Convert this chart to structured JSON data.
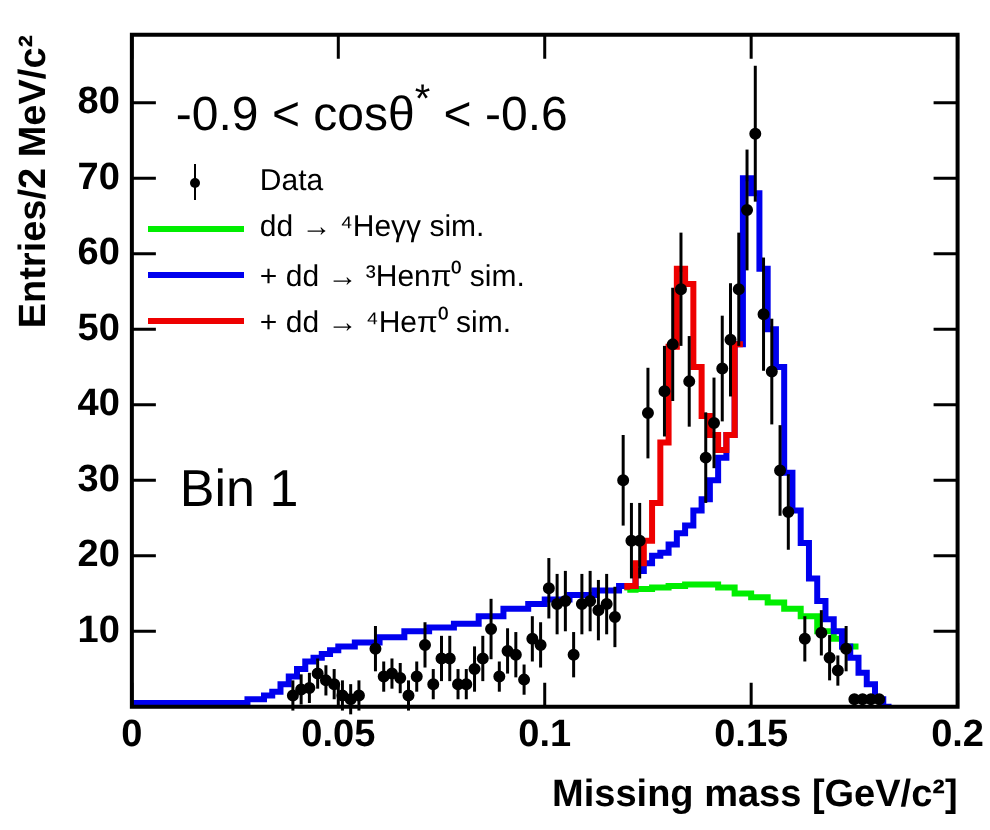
{
  "chart_data": {
    "type": "step",
    "xlabel": "Missing mass [GeV/c²]",
    "ylabel": "Entries/2 MeV/c²",
    "xlim": [
      0,
      0.2
    ],
    "ylim": [
      0,
      89
    ],
    "xticks": [
      0,
      0.05,
      0.1,
      0.15,
      0.2
    ],
    "yticks": [
      10,
      20,
      30,
      40,
      50,
      60,
      70,
      80
    ],
    "grid": false,
    "legend": "top left",
    "annotations": [
      "-0.9 < cosθ$^{*}$ < -0.6",
      "Bin 1"
    ],
    "series": [
      {
        "name": "Data",
        "type": "scatter",
        "marker": "circle",
        "color": "#000000",
        "x": [
          0.039,
          0.041,
          0.043,
          0.045,
          0.047,
          0.049,
          0.051,
          0.053,
          0.055,
          0.059,
          0.061,
          0.063,
          0.065,
          0.067,
          0.069,
          0.071,
          0.073,
          0.075,
          0.077,
          0.079,
          0.081,
          0.083,
          0.085,
          0.087,
          0.089,
          0.091,
          0.093,
          0.095,
          0.097,
          0.099,
          0.101,
          0.103,
          0.105,
          0.107,
          0.109,
          0.111,
          0.113,
          0.115,
          0.117,
          0.119,
          0.121,
          0.123,
          0.125,
          0.129,
          0.131,
          0.133,
          0.135,
          0.139,
          0.141,
          0.143,
          0.145,
          0.147,
          0.149,
          0.151,
          0.153,
          0.155,
          0.157,
          0.159,
          0.163,
          0.167,
          0.169,
          0.171,
          0.173,
          0.175,
          0.177,
          0.179,
          0.181
        ],
        "values": [
          1.5,
          2.3,
          2.5,
          4.4,
          3.5,
          3,
          1.5,
          1,
          1.5,
          7.7,
          4,
          4.4,
          3.8,
          1.5,
          4,
          8.2,
          3,
          6.4,
          6.4,
          3,
          3,
          5,
          6.4,
          10.3,
          4,
          7.4,
          6.9,
          3.6,
          9,
          8.2,
          15.7,
          13.6,
          14,
          6.9,
          13.6,
          14,
          12.8,
          13.6,
          11.9,
          30,
          22,
          22,
          38.9,
          41.8,
          48,
          55.3,
          43.1,
          33,
          37.6,
          44.8,
          48.6,
          55.3,
          65.8,
          75.9,
          52,
          44.4,
          31.3,
          25.8,
          9,
          9.8,
          6.5,
          4.8,
          7.7,
          1,
          1,
          1,
          1
        ],
        "errors": [
          2,
          2,
          2,
          2,
          2,
          2,
          2,
          2,
          2,
          3,
          2,
          2,
          2,
          2,
          2,
          3,
          2,
          3,
          3,
          2,
          2,
          3,
          3,
          4,
          2,
          3,
          3,
          2,
          3,
          3,
          4,
          4,
          4,
          3,
          4,
          4,
          4,
          4,
          4,
          6,
          5,
          5,
          6,
          6,
          7.5,
          7.5,
          6,
          6,
          6,
          7,
          7.5,
          7.5,
          8,
          9,
          7.5,
          7,
          6,
          5,
          3,
          3,
          3,
          2,
          3,
          null,
          null,
          null,
          null
        ]
      },
      {
        "name": "dd → ⁴Heγγ sim.",
        "color": "#00ee00",
        "x": [
          0.12,
          0.122,
          0.126,
          0.13,
          0.134,
          0.138,
          0.142,
          0.146,
          0.15,
          0.154,
          0.158,
          0.162,
          0.166,
          0.17,
          0.172,
          0.174,
          0.176
        ],
        "values": [
          15.4,
          15.5,
          15.6,
          15.8,
          16,
          16.2,
          16.2,
          15.8,
          15,
          14.5,
          13.8,
          13,
          12,
          10,
          9,
          8,
          8
        ]
      },
      {
        "name": "+ dd → ³Henπ⁰ sim.",
        "color": "#0000ee",
        "x": [
          0,
          0.028,
          0.032,
          0.034,
          0.036,
          0.038,
          0.04,
          0.042,
          0.044,
          0.046,
          0.048,
          0.05,
          0.054,
          0.06,
          0.066,
          0.072,
          0.078,
          0.084,
          0.09,
          0.096,
          0.1,
          0.106,
          0.112,
          0.118,
          0.122,
          0.124,
          0.126,
          0.128,
          0.13,
          0.132,
          0.134,
          0.136,
          0.138,
          0.14,
          0.142,
          0.144,
          0.146,
          0.148,
          0.15,
          0.152,
          0.154,
          0.156,
          0.158,
          0.16,
          0.162,
          0.164,
          0.166,
          0.168,
          0.17,
          0.172,
          0.174,
          0.176,
          0.178,
          0.18,
          0.182,
          0.184
        ],
        "values": [
          0,
          0.5,
          1,
          1.5,
          2,
          3,
          4,
          5,
          6,
          6.5,
          7,
          7.5,
          8,
          8.5,
          9.2,
          10,
          10.5,
          11,
          12,
          13,
          13.6,
          14.2,
          14.8,
          15.4,
          16,
          18,
          19,
          20,
          20.4,
          21.5,
          23,
          24,
          26,
          27.5,
          30,
          33,
          36,
          48,
          70,
          68,
          58,
          50,
          45,
          31,
          26,
          21.7,
          17,
          14,
          11.6,
          10,
          8,
          6.5,
          4.5,
          3,
          1,
          0
        ]
      },
      {
        "name": "+ dd → ⁴Heπ⁰ sim.",
        "color": "#ee0000",
        "x": [
          0.12,
          0.122,
          0.124,
          0.126,
          0.128,
          0.13,
          0.132,
          0.134,
          0.136,
          0.138,
          0.14,
          0.142,
          0.144,
          0.146,
          0.148
        ],
        "values": [
          15.5,
          16,
          19,
          22,
          27,
          35,
          47.7,
          58,
          56,
          45,
          38.5,
          36,
          34,
          36,
          48
        ]
      }
    ]
  }
}
